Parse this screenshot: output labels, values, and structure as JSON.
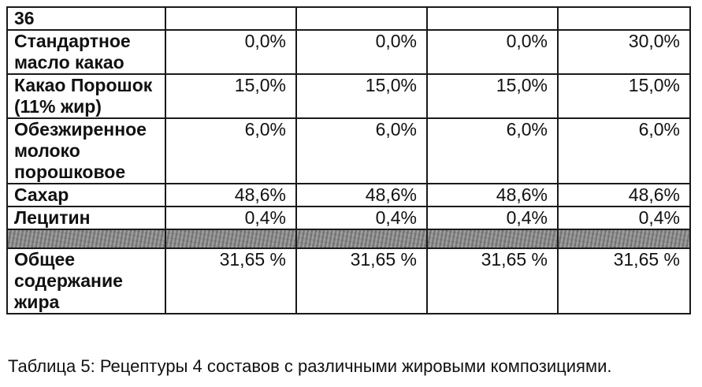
{
  "table": {
    "header": {
      "label": "36",
      "values": [
        "",
        "",
        "",
        ""
      ]
    },
    "rows": [
      {
        "label": "Стандартное масло какао",
        "values": [
          "0,0%",
          "0,0%",
          "0,0%",
          "30,0%"
        ]
      },
      {
        "label": "Какао Порошок (11% жир)",
        "values": [
          "15,0%",
          "15,0%",
          "15,0%",
          "15,0%"
        ]
      },
      {
        "label": "Обезжиренное молоко порошковое",
        "values": [
          "6,0%",
          "6,0%",
          "6,0%",
          "6,0%"
        ]
      },
      {
        "label": "Сахар",
        "values": [
          "48,6%",
          "48,6%",
          "48,6%",
          "48,6%"
        ]
      },
      {
        "label": "Лецитин",
        "values": [
          "0,4%",
          "0,4%",
          "0,4%",
          "0,4%"
        ]
      }
    ],
    "total": {
      "label": "Общее содержание жира",
      "values": [
        "31,65 %",
        "31,65 %",
        "31,65 %",
        "31,65 %"
      ]
    }
  },
  "caption": "Таблица 5: Рецептуры 4 составов с различными жировыми композициями."
}
